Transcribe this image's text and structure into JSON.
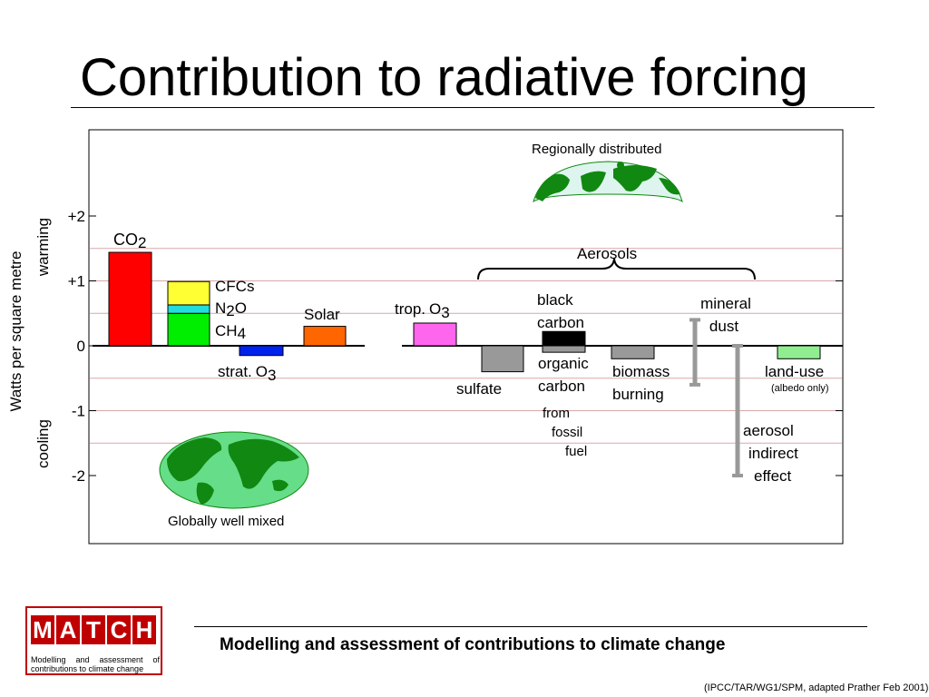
{
  "slide": {
    "title": "Contribution to radiative forcing",
    "tagline": "Modelling and assessment of contributions to climate change",
    "source": "(IPCC/TAR/WG1/SPM, adapted Prather Feb 2001)"
  },
  "logo": {
    "letters": [
      "M",
      "A",
      "T",
      "C",
      "H"
    ],
    "subtitle": "Modelling and assessment of contributions to climate change",
    "color": "#c00000"
  },
  "chart_data": {
    "type": "bar",
    "ylabel": "Watts per square metre",
    "ylabel_warming": "warming",
    "ylabel_cooling": "cooling",
    "ylim": [
      -3,
      3.1
    ],
    "yticks": [
      {
        "value": 2,
        "label": "+2"
      },
      {
        "value": 1,
        "label": "+1"
      },
      {
        "value": 0,
        "label": "0"
      },
      {
        "value": -1,
        "label": "-1"
      },
      {
        "value": -2,
        "label": "-2"
      }
    ],
    "gridlines": [
      1.5,
      1,
      0.5,
      -0.5,
      -1,
      -1.5
    ],
    "bars": [
      {
        "name": "co2",
        "segments": [
          {
            "from": 0,
            "to": 1.44,
            "color": "#ff0000"
          }
        ]
      },
      {
        "name": "cfcs-n2o-ch4",
        "segments": [
          {
            "from": 0,
            "to": 0.5,
            "color": "#00ee00"
          },
          {
            "from": 0.5,
            "to": 0.63,
            "color": "#22dddd"
          },
          {
            "from": 0.63,
            "to": 0.99,
            "color": "#ffff33"
          }
        ]
      },
      {
        "name": "strat-o3",
        "segments": [
          {
            "from": 0,
            "to": -0.15,
            "color": "#0022ee"
          }
        ]
      },
      {
        "name": "solar",
        "segments": [
          {
            "from": 0,
            "to": 0.3,
            "color": "#ff6600"
          }
        ]
      },
      {
        "name": "trop-o3",
        "segments": [
          {
            "from": 0,
            "to": 0.35,
            "color": "#ff66ee"
          }
        ]
      },
      {
        "name": "sulfate",
        "segments": [
          {
            "from": 0,
            "to": -0.4,
            "color": "#999999"
          }
        ]
      },
      {
        "name": "black-carbon",
        "segments": [
          {
            "from": 0,
            "to": 0.22,
            "color": "#000000"
          }
        ]
      },
      {
        "name": "organic-carbon",
        "segments": [
          {
            "from": 0,
            "to": -0.1,
            "color": "#999999"
          }
        ]
      },
      {
        "name": "biomass-burning",
        "segments": [
          {
            "from": 0,
            "to": -0.2,
            "color": "#999999"
          }
        ]
      },
      {
        "name": "land-use",
        "segments": [
          {
            "from": 0,
            "to": -0.2,
            "color": "#90ee90"
          }
        ]
      }
    ],
    "ranges": [
      {
        "name": "mineral-dust",
        "from": 0.4,
        "to": -0.6,
        "color": "#999999"
      },
      {
        "name": "aerosol-indirect-effect",
        "from": 0,
        "to": -2,
        "color": "#999999"
      }
    ],
    "labels": {
      "co2": "CO",
      "co2_sub": "2",
      "cfcs": "CFCs",
      "n2o_n": "N",
      "n2o_sub": "2",
      "n2o_o": "O",
      "ch4": "CH",
      "ch4_sub": "4",
      "strat": "strat.",
      "strat_o": "O",
      "strat_sub": "3",
      "solar": "Solar",
      "trop": "trop.",
      "trop_o": "O",
      "trop_sub": "3",
      "black_carbon": [
        "black",
        "carbon"
      ],
      "organic_carbon": [
        "organic",
        "carbon"
      ],
      "from_fossil_fuel": [
        "from",
        "fossil",
        "fuel"
      ],
      "sulfate": "sulfate",
      "biomass": [
        "biomass",
        "burning"
      ],
      "mineral_dust": [
        "mineral",
        "dust"
      ],
      "land_use": "land-use",
      "albedo": "(albedo only)",
      "aerosol_indirect": [
        "aerosol",
        "indirect",
        "effect"
      ],
      "aerosols_group": "Aerosols",
      "regional_note": "Regionally distributed",
      "global_note": "Globally well mixed"
    },
    "globe_colors": {
      "ocean": "#66dd88",
      "land": "#118811",
      "regional_ocean": "#ddf5ee"
    }
  }
}
